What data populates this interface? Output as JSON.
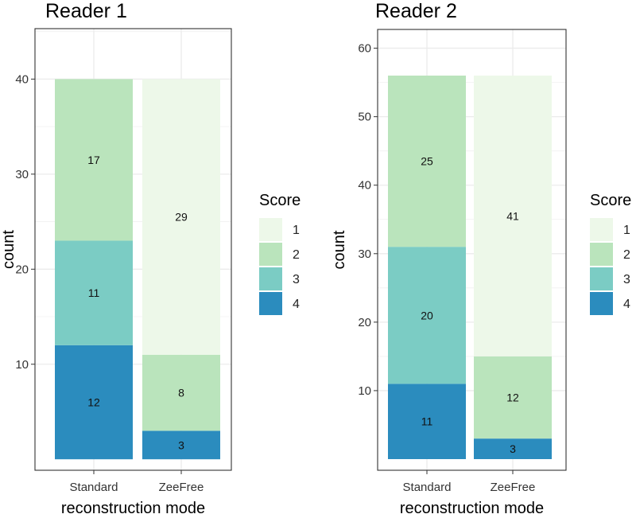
{
  "colors": {
    "1": "#edf8e9",
    "2": "#bae4bc",
    "3": "#7bccc4",
    "4": "#2b8cbe"
  },
  "chart_data": [
    {
      "type": "bar",
      "stacked": true,
      "title": "Reader 1",
      "xlabel": "reconstruction mode",
      "ylabel": "count",
      "categories": [
        "Standard",
        "ZeeFree"
      ],
      "ylim": [
        0,
        40
      ],
      "yticks": [
        10,
        20,
        30,
        40
      ],
      "series": [
        {
          "name": "4",
          "values": [
            12,
            3
          ]
        },
        {
          "name": "3",
          "values": [
            11,
            0
          ]
        },
        {
          "name": "2",
          "values": [
            17,
            8
          ]
        },
        {
          "name": "1",
          "values": [
            0,
            29
          ]
        }
      ],
      "legend": {
        "title": "Score",
        "entries": [
          "1",
          "2",
          "3",
          "4"
        ],
        "position": "right"
      },
      "grid": true
    },
    {
      "type": "bar",
      "stacked": true,
      "title": "Reader 2",
      "xlabel": "reconstruction mode",
      "ylabel": "count",
      "categories": [
        "Standard",
        "ZeeFree"
      ],
      "ylim": [
        0,
        60
      ],
      "yticks": [
        10,
        20,
        30,
        40,
        50,
        60
      ],
      "series": [
        {
          "name": "4",
          "values": [
            11,
            3
          ]
        },
        {
          "name": "3",
          "values": [
            20,
            0
          ]
        },
        {
          "name": "2",
          "values": [
            25,
            12
          ]
        },
        {
          "name": "1",
          "values": [
            0,
            41
          ]
        }
      ],
      "legend": {
        "title": "Score",
        "entries": [
          "1",
          "2",
          "3",
          "4"
        ],
        "position": "right"
      },
      "grid": true
    }
  ]
}
